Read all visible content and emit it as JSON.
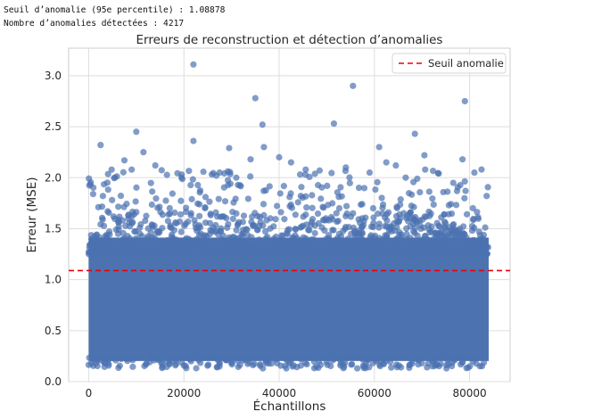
{
  "console": {
    "line1": "Seuil d’anomalie (95e percentile) : 1.08878",
    "line2": "Nombre d’anomalies détectées : 4217"
  },
  "chart_data": {
    "type": "scatter",
    "title": "Erreurs de reconstruction et détection d’anomalies",
    "xlabel": "Échantillons",
    "ylabel": "Erreur (MSE)",
    "xlim": [
      -4200,
      88500
    ],
    "ylim": [
      0.0,
      3.27
    ],
    "xticks": [
      0,
      20000,
      40000,
      60000,
      80000
    ],
    "xtick_labels": [
      "0",
      "20000",
      "40000",
      "60000",
      "80000"
    ],
    "yticks": [
      0.0,
      0.5,
      1.0,
      1.5,
      2.0,
      2.5,
      3.0
    ],
    "ytick_labels": [
      "0.0",
      "0.5",
      "1.0",
      "1.5",
      "2.0",
      "2.5",
      "3.0"
    ],
    "grid": true,
    "n_samples": 84000,
    "dense_band": {
      "x_range": [
        0,
        84000
      ],
      "y_range": [
        0.15,
        1.5
      ]
    },
    "series": [
      {
        "name": "Erreurs de reconstruction",
        "color": "#4c72b0",
        "points": [
          {
            "x": 22000,
            "y": 3.11
          },
          {
            "x": 35000,
            "y": 2.78
          },
          {
            "x": 55500,
            "y": 2.9
          },
          {
            "x": 79000,
            "y": 2.75
          },
          {
            "x": 51500,
            "y": 2.53
          },
          {
            "x": 36500,
            "y": 2.52
          },
          {
            "x": 10000,
            "y": 2.45
          },
          {
            "x": 68500,
            "y": 2.43
          },
          {
            "x": 22000,
            "y": 2.36
          },
          {
            "x": 2500,
            "y": 2.32
          },
          {
            "x": 36800,
            "y": 2.3
          },
          {
            "x": 61000,
            "y": 2.3
          },
          {
            "x": 29500,
            "y": 2.29
          },
          {
            "x": 11500,
            "y": 2.25
          },
          {
            "x": 70500,
            "y": 2.22
          },
          {
            "x": 40000,
            "y": 2.2
          },
          {
            "x": 7500,
            "y": 2.17
          },
          {
            "x": 34000,
            "y": 2.18
          },
          {
            "x": 42500,
            "y": 2.15
          },
          {
            "x": 62500,
            "y": 2.15
          },
          {
            "x": 78500,
            "y": 2.18
          },
          {
            "x": 14000,
            "y": 2.12
          },
          {
            "x": 48500,
            "y": 2.07
          },
          {
            "x": 54000,
            "y": 2.1
          },
          {
            "x": 64500,
            "y": 2.12
          },
          {
            "x": 82500,
            "y": 2.08
          },
          {
            "x": 5500,
            "y": 2.0
          },
          {
            "x": 19500,
            "y": 2.0
          },
          {
            "x": 27500,
            "y": 2.05
          },
          {
            "x": 31000,
            "y": 2.0
          },
          {
            "x": 45500,
            "y": 2.03
          },
          {
            "x": 59000,
            "y": 2.05
          },
          {
            "x": 73500,
            "y": 2.04
          },
          {
            "x": 81000,
            "y": 2.05
          }
        ]
      },
      {
        "name": "Seuil anomalie",
        "type": "hline",
        "y": 1.08878,
        "color": "#e8000b",
        "dash": "dashed"
      }
    ],
    "legend": {
      "position": "top-right",
      "entries": [
        "Seuil anomalie"
      ]
    }
  }
}
